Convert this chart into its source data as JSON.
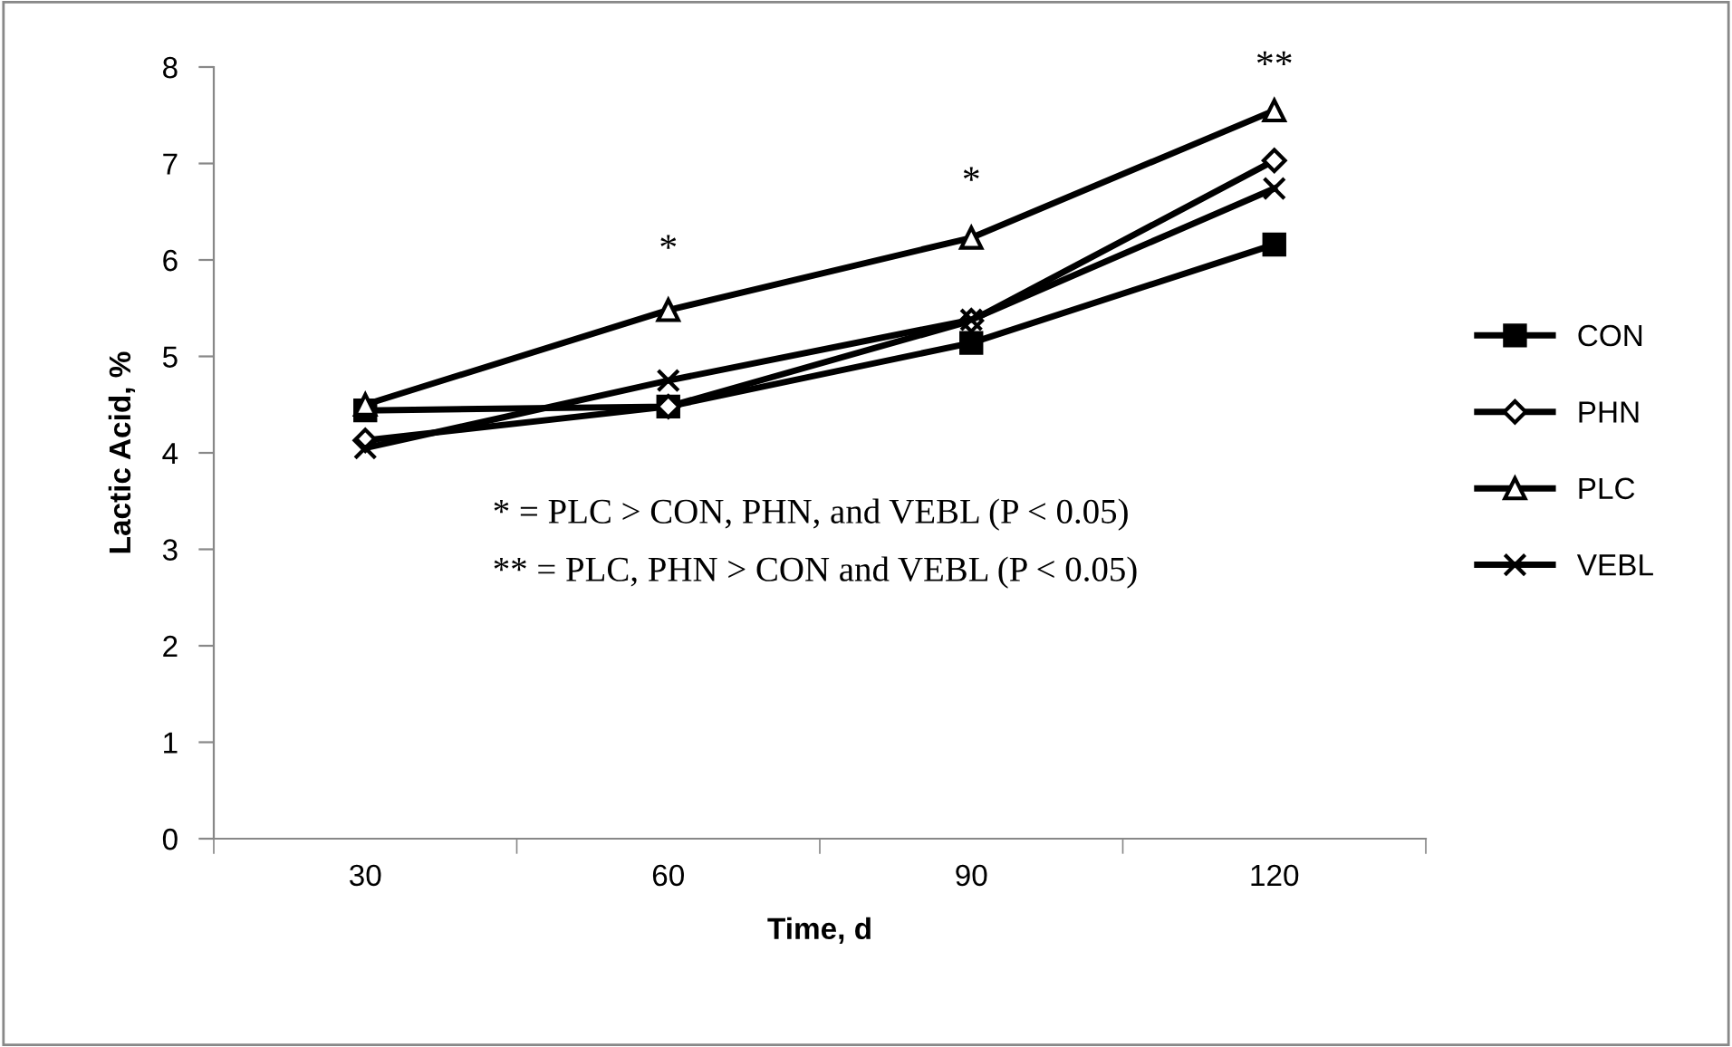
{
  "chart_data": {
    "type": "line",
    "xlabel": "Time, d",
    "ylabel": "Lactic Acid, %",
    "categories": [
      "30",
      "60",
      "90",
      "120"
    ],
    "ylim": [
      0,
      8
    ],
    "yticks": [
      0,
      1,
      2,
      3,
      4,
      5,
      6,
      7,
      8
    ],
    "grid": false,
    "legend": "right",
    "series": [
      {
        "name": "CON",
        "color": "#000000",
        "marker": "square",
        "values": [
          4.44,
          4.48,
          5.14,
          6.16
        ]
      },
      {
        "name": "PHN",
        "color": "#000000",
        "marker": "diamond",
        "values": [
          4.13,
          4.48,
          5.37,
          7.03
        ]
      },
      {
        "name": "PLC",
        "color": "#000000",
        "marker": "triangle",
        "values": [
          4.5,
          5.48,
          6.23,
          7.55
        ]
      },
      {
        "name": "VEBL",
        "color": "#000000",
        "marker": "cross",
        "values": [
          4.05,
          4.75,
          5.38,
          6.74
        ]
      }
    ],
    "annotations": [
      "*",
      "*",
      "**",
      "* = PLC > CON, PHN, and VEBL (P < 0.05)",
      "** = PLC, PHN > CON and VEBL (P < 0.05)"
    ]
  }
}
